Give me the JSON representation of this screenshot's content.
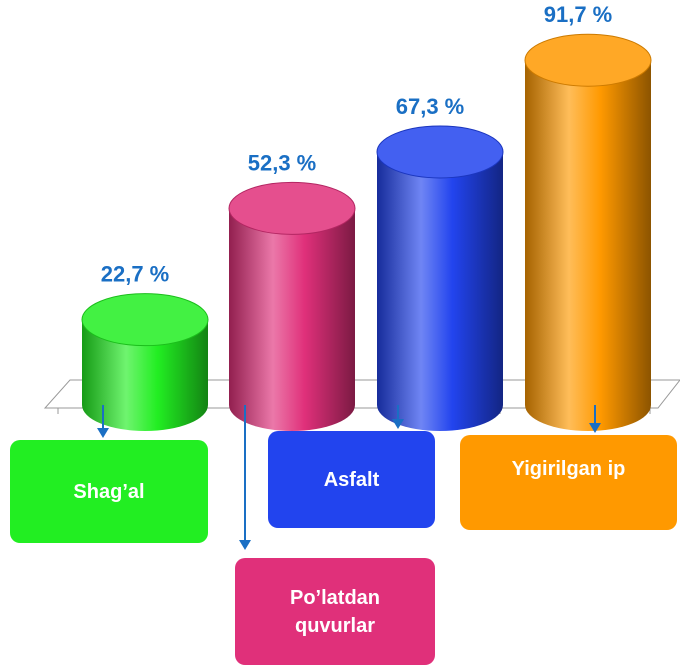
{
  "chart_data": {
    "type": "bar3d",
    "categories": [
      "Shag’al",
      "Po’latdan quvurlar",
      "Asfalt",
      "Yigirilgan ip"
    ],
    "values": [
      22.7,
      52.3,
      67.3,
      91.7
    ],
    "value_labels": [
      "22,7 %",
      "52,3 %",
      "67,3 %",
      "91,7 %"
    ],
    "colors": [
      "#22ee22",
      "#e0307a",
      "#2244ee",
      "#ff9900"
    ]
  }
}
